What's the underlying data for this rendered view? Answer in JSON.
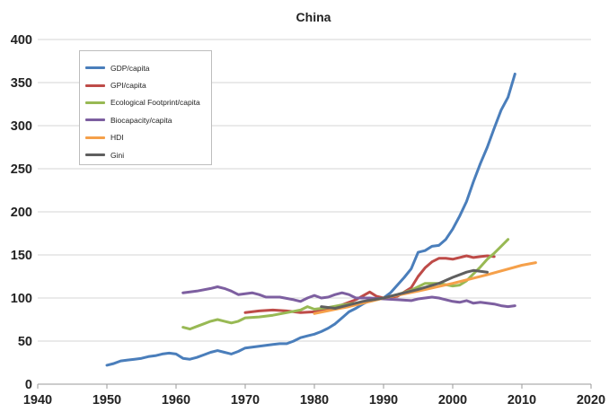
{
  "chart_data": {
    "type": "line",
    "title": "China",
    "xlabel": "",
    "ylabel": "",
    "xlim": [
      1940,
      2020
    ],
    "ylim": [
      0,
      400
    ],
    "x_ticks": [
      "1940",
      "1950",
      "1960",
      "1970",
      "1980",
      "1990",
      "2000",
      "2010",
      "2020"
    ],
    "y_ticks": [
      "0",
      "50",
      "100",
      "150",
      "200",
      "250",
      "300",
      "350",
      "400"
    ],
    "grid": "horizontal",
    "legend_position": "top-left",
    "series": [
      {
        "name": "GDP/capita",
        "color": "#4a7ebb",
        "points": [
          [
            1950,
            22
          ],
          [
            1951,
            24
          ],
          [
            1952,
            27
          ],
          [
            1953,
            28
          ],
          [
            1954,
            29
          ],
          [
            1955,
            30
          ],
          [
            1956,
            32
          ],
          [
            1957,
            33
          ],
          [
            1958,
            35
          ],
          [
            1959,
            36
          ],
          [
            1960,
            35
          ],
          [
            1961,
            30
          ],
          [
            1962,
            29
          ],
          [
            1963,
            31
          ],
          [
            1964,
            34
          ],
          [
            1965,
            37
          ],
          [
            1966,
            39
          ],
          [
            1967,
            37
          ],
          [
            1968,
            35
          ],
          [
            1969,
            38
          ],
          [
            1970,
            42
          ],
          [
            1971,
            43
          ],
          [
            1972,
            44
          ],
          [
            1973,
            45
          ],
          [
            1974,
            46
          ],
          [
            1975,
            47
          ],
          [
            1976,
            47
          ],
          [
            1977,
            50
          ],
          [
            1978,
            54
          ],
          [
            1979,
            56
          ],
          [
            1980,
            58
          ],
          [
            1981,
            61
          ],
          [
            1982,
            65
          ],
          [
            1983,
            70
          ],
          [
            1984,
            77
          ],
          [
            1985,
            84
          ],
          [
            1986,
            88
          ],
          [
            1987,
            93
          ],
          [
            1988,
            97
          ],
          [
            1989,
            99
          ],
          [
            1990,
            100
          ],
          [
            1991,
            106
          ],
          [
            1992,
            115
          ],
          [
            1993,
            124
          ],
          [
            1994,
            134
          ],
          [
            1995,
            153
          ],
          [
            1996,
            155
          ],
          [
            1997,
            160
          ],
          [
            1998,
            161
          ],
          [
            1999,
            168
          ],
          [
            2000,
            180
          ],
          [
            2001,
            195
          ],
          [
            2002,
            212
          ],
          [
            2003,
            235
          ],
          [
            2004,
            256
          ],
          [
            2005,
            275
          ],
          [
            2006,
            297
          ],
          [
            2007,
            318
          ],
          [
            2008,
            333
          ],
          [
            2009,
            360
          ]
        ]
      },
      {
        "name": "GPI/capita",
        "color": "#be4b48",
        "points": [
          [
            1970,
            83
          ],
          [
            1972,
            85
          ],
          [
            1974,
            86
          ],
          [
            1976,
            85
          ],
          [
            1978,
            83
          ],
          [
            1980,
            84
          ],
          [
            1982,
            88
          ],
          [
            1984,
            92
          ],
          [
            1986,
            98
          ],
          [
            1988,
            107
          ],
          [
            1989,
            102
          ],
          [
            1990,
            100
          ],
          [
            1992,
            102
          ],
          [
            1994,
            112
          ],
          [
            1995,
            125
          ],
          [
            1996,
            135
          ],
          [
            1997,
            142
          ],
          [
            1998,
            146
          ],
          [
            1999,
            146
          ],
          [
            2000,
            145
          ],
          [
            2001,
            147
          ],
          [
            2002,
            149
          ],
          [
            2003,
            147
          ],
          [
            2004,
            148
          ],
          [
            2005,
            149
          ],
          [
            2006,
            148
          ]
        ]
      },
      {
        "name": "Ecological Footprint/capita",
        "color": "#98b954",
        "points": [
          [
            1961,
            66
          ],
          [
            1962,
            64
          ],
          [
            1963,
            67
          ],
          [
            1964,
            70
          ],
          [
            1965,
            73
          ],
          [
            1966,
            75
          ],
          [
            1967,
            73
          ],
          [
            1968,
            71
          ],
          [
            1969,
            73
          ],
          [
            1970,
            77
          ],
          [
            1972,
            78
          ],
          [
            1974,
            80
          ],
          [
            1976,
            83
          ],
          [
            1978,
            86
          ],
          [
            1979,
            90
          ],
          [
            1980,
            87
          ],
          [
            1982,
            89
          ],
          [
            1984,
            92
          ],
          [
            1986,
            94
          ],
          [
            1988,
            96
          ],
          [
            1990,
            100
          ],
          [
            1992,
            104
          ],
          [
            1994,
            109
          ],
          [
            1995,
            113
          ],
          [
            1996,
            117
          ],
          [
            1998,
            117
          ],
          [
            2000,
            114
          ],
          [
            2001,
            115
          ],
          [
            2002,
            120
          ],
          [
            2003,
            128
          ],
          [
            2004,
            136
          ],
          [
            2005,
            145
          ],
          [
            2006,
            152
          ],
          [
            2007,
            160
          ],
          [
            2008,
            168
          ]
        ]
      },
      {
        "name": "Biocapacity/capita",
        "color": "#7d5fa0",
        "points": [
          [
            1961,
            106
          ],
          [
            1963,
            108
          ],
          [
            1965,
            111
          ],
          [
            1966,
            113
          ],
          [
            1967,
            111
          ],
          [
            1968,
            108
          ],
          [
            1969,
            104
          ],
          [
            1970,
            105
          ],
          [
            1971,
            106
          ],
          [
            1972,
            104
          ],
          [
            1973,
            101
          ],
          [
            1975,
            101
          ],
          [
            1977,
            98
          ],
          [
            1978,
            96
          ],
          [
            1979,
            100
          ],
          [
            1980,
            103
          ],
          [
            1981,
            100
          ],
          [
            1982,
            101
          ],
          [
            1983,
            104
          ],
          [
            1984,
            106
          ],
          [
            1985,
            104
          ],
          [
            1986,
            100
          ],
          [
            1988,
            100
          ],
          [
            1990,
            99
          ],
          [
            1992,
            98
          ],
          [
            1994,
            97
          ],
          [
            1995,
            99
          ],
          [
            1996,
            100
          ],
          [
            1997,
            101
          ],
          [
            1998,
            100
          ],
          [
            1999,
            98
          ],
          [
            2000,
            96
          ],
          [
            2001,
            95
          ],
          [
            2002,
            97
          ],
          [
            2003,
            94
          ],
          [
            2004,
            95
          ],
          [
            2005,
            94
          ],
          [
            2006,
            93
          ],
          [
            2007,
            91
          ],
          [
            2008,
            90
          ],
          [
            2009,
            91
          ]
        ]
      },
      {
        "name": "HDI",
        "color": "#f5a04a",
        "points": [
          [
            1980,
            82
          ],
          [
            1985,
            90
          ],
          [
            1990,
            100
          ],
          [
            1995,
            108
          ],
          [
            2000,
            117
          ],
          [
            2005,
            127
          ],
          [
            2010,
            138
          ],
          [
            2012,
            141
          ]
        ]
      },
      {
        "name": "Gini",
        "color": "#5f5f5f",
        "points": [
          [
            1981,
            90
          ],
          [
            1983,
            88
          ],
          [
            1985,
            92
          ],
          [
            1987,
            96
          ],
          [
            1990,
            100
          ],
          [
            1993,
            106
          ],
          [
            1995,
            110
          ],
          [
            1998,
            117
          ],
          [
            2000,
            124
          ],
          [
            2002,
            130
          ],
          [
            2003,
            132
          ],
          [
            2004,
            131
          ],
          [
            2005,
            130
          ]
        ]
      }
    ]
  }
}
